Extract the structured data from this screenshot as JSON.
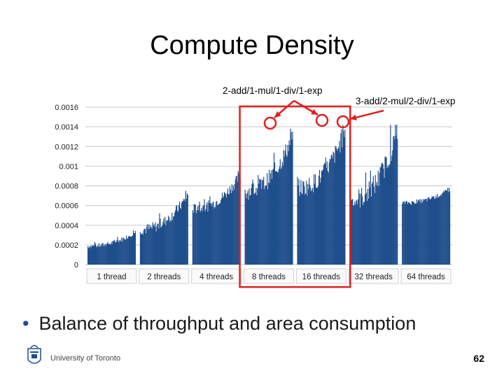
{
  "slide": {
    "title": "Compute Density",
    "bullet": "Balance of throughput and area consumption",
    "footer": "University of Toronto",
    "page_number": "62",
    "logo_icon": "university-crest-icon"
  },
  "annotations": {
    "left": "2-add/1-mul/1-div/1-exp",
    "right": "3-add/2-mul/2-div/1-exp"
  },
  "chart_data": {
    "type": "bar",
    "title": "",
    "ylim": [
      0,
      0.0016
    ],
    "yticks": [
      "0.0016",
      "0.0014",
      "0.0012",
      "0.001",
      "0.0008",
      "0.0006",
      "0.0004",
      "0.0002",
      "0"
    ],
    "grid": true,
    "bar_color": "#1f4e8c",
    "highlight_color": "#e02020",
    "groups": [
      {
        "label": "1 thread",
        "base": 0.00018,
        "peak": 0.00035
      },
      {
        "label": "2 threads",
        "base": 0.00034,
        "peak": 0.00075
      },
      {
        "label": "4 threads",
        "base": 0.00055,
        "peak": 0.00095
      },
      {
        "label": "8 threads",
        "base": 0.00072,
        "peak": 0.00138
      },
      {
        "label": "16 threads",
        "base": 0.00075,
        "peak": 0.00142
      },
      {
        "label": "32 threads",
        "base": 0.00062,
        "peak": 0.00142
      },
      {
        "label": "64 threads",
        "base": 0.00062,
        "peak": 0.00078
      }
    ]
  }
}
